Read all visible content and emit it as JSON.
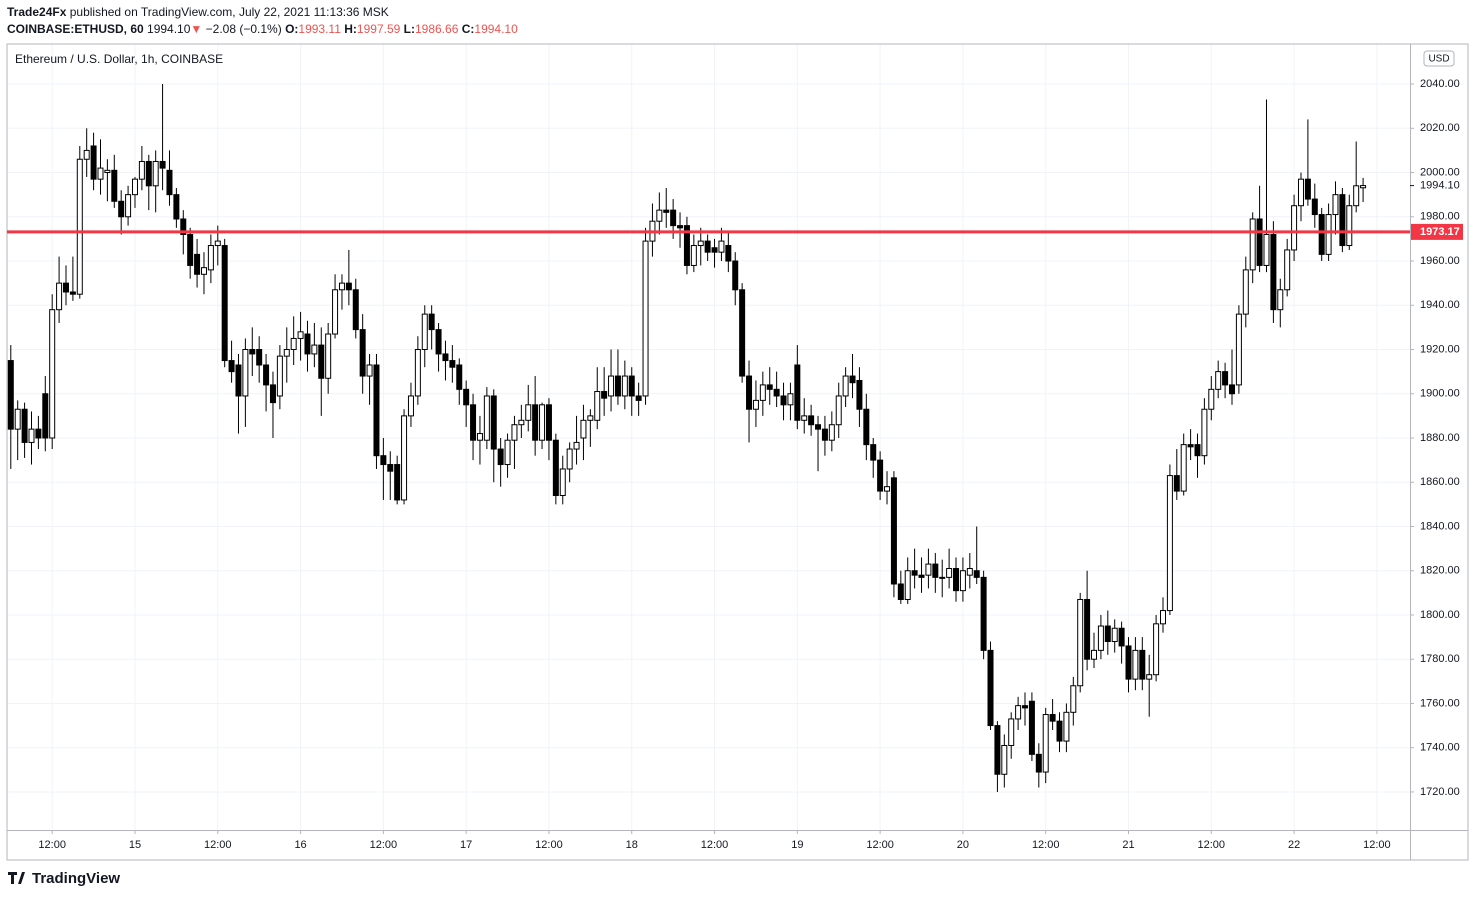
{
  "header": {
    "author": "Trade24Fx",
    "published": "published on TradingView.com, July 22, 2021 11:13:36 MSK",
    "symbol": "COINBASE:ETHUSD, 60",
    "last": "1994.10",
    "arrow": "▼",
    "change": "−2.08 (−0.1%)",
    "o_label": "O:",
    "o": "1993.11",
    "h_label": "H:",
    "h": "1997.59",
    "l_label": "L:",
    "l": "1986.66",
    "c_label": "C:",
    "c": "1994.10"
  },
  "footer": {
    "logo": "TradingView"
  },
  "chart_data": {
    "type": "candlestick",
    "title": "Ethereum / U.S. Dollar, 1h, COINBASE",
    "currency": "USD",
    "up_color": "#ffffff",
    "down_color": "#000000",
    "wick_color": "#000000",
    "grid": true,
    "hline": 1973.17,
    "hline_color": "#f23645",
    "ylim": [
      1702.8,
      2058.1
    ],
    "yticks": [
      {
        "value": 1720,
        "label": "1720.00"
      },
      {
        "value": 1740,
        "label": "1740.00"
      },
      {
        "value": 1760,
        "label": "1760.00"
      },
      {
        "value": 1780,
        "label": "1780.00"
      },
      {
        "value": 1800,
        "label": "1800.00"
      },
      {
        "value": 1820,
        "label": "1820.00"
      },
      {
        "value": 1840,
        "label": "1840.00"
      },
      {
        "value": 1860,
        "label": "1860.00"
      },
      {
        "value": 1880,
        "label": "1880.00"
      },
      {
        "value": 1900,
        "label": "1900.00"
      },
      {
        "value": 1920,
        "label": "1920.00"
      },
      {
        "value": 1940,
        "label": "1940.00"
      },
      {
        "value": 1960,
        "label": "1960.00"
      },
      {
        "value": 1980,
        "label": "1980.00"
      },
      {
        "value": 2000,
        "label": "2000.00"
      },
      {
        "value": 2020,
        "label": "2020.00"
      },
      {
        "value": 2040,
        "label": "2040.00"
      }
    ],
    "xlim": [
      5.45,
      208.8
    ],
    "xticks": [
      {
        "value": 12,
        "label": "12:00"
      },
      {
        "value": 24,
        "label": "15"
      },
      {
        "value": 36,
        "label": "12:00"
      },
      {
        "value": 48,
        "label": "16"
      },
      {
        "value": 60,
        "label": "12:00"
      },
      {
        "value": 72,
        "label": "17"
      },
      {
        "value": 84,
        "label": "12:00"
      },
      {
        "value": 96,
        "label": "18"
      },
      {
        "value": 108,
        "label": "12:00"
      },
      {
        "value": 120,
        "label": "19"
      },
      {
        "value": 132,
        "label": "12:00"
      },
      {
        "value": 144,
        "label": "20"
      },
      {
        "value": 156,
        "label": "12:00"
      },
      {
        "value": 168,
        "label": "21"
      },
      {
        "value": 180,
        "label": "12:00"
      },
      {
        "value": 192,
        "label": "22"
      },
      {
        "value": 204,
        "label": "12:00"
      }
    ],
    "x": [
      6,
      7,
      8,
      9,
      10,
      11,
      12,
      13,
      14,
      15,
      16,
      17,
      18,
      19,
      20,
      21,
      22,
      23,
      24,
      25,
      26,
      27,
      28,
      29,
      30,
      31,
      32,
      33,
      34,
      35,
      36,
      37,
      38,
      39,
      40,
      41,
      42,
      43,
      44,
      45,
      46,
      47,
      48,
      49,
      50,
      51,
      52,
      53,
      54,
      55,
      56,
      57,
      58,
      59,
      60,
      61,
      62,
      63,
      64,
      65,
      66,
      67,
      68,
      69,
      70,
      71,
      72,
      73,
      74,
      75,
      76,
      77,
      78,
      79,
      80,
      81,
      82,
      83,
      84,
      85,
      86,
      87,
      88,
      89,
      90,
      91,
      92,
      93,
      94,
      95,
      96,
      97,
      98,
      99,
      100,
      101,
      102,
      103,
      104,
      105,
      106,
      107,
      108,
      109,
      110,
      111,
      112,
      113,
      114,
      115,
      116,
      117,
      118,
      119,
      120,
      121,
      122,
      123,
      124,
      125,
      126,
      127,
      128,
      129,
      130,
      131,
      132,
      133,
      134,
      135,
      136,
      137,
      138,
      139,
      140,
      141,
      142,
      143,
      144,
      145,
      146,
      147,
      148,
      149,
      150,
      151,
      152,
      153,
      154,
      155,
      156,
      157,
      158,
      159,
      160,
      161,
      162,
      163,
      164,
      165,
      166,
      167,
      168,
      169,
      170,
      171,
      172,
      173,
      174,
      175,
      176,
      177,
      178,
      179,
      180,
      181,
      182,
      183,
      184,
      185,
      186,
      187,
      188,
      189,
      190,
      191,
      192,
      193,
      194,
      195,
      196,
      197,
      198,
      199,
      200,
      201,
      202
    ],
    "ohlc": [
      [
        1915,
        1922,
        1866,
        1884
      ],
      [
        1884,
        1897,
        1870,
        1893
      ],
      [
        1893,
        1896,
        1871,
        1878
      ],
      [
        1878,
        1892,
        1868,
        1884
      ],
      [
        1884,
        1890,
        1875,
        1880
      ],
      [
        1900,
        1908,
        1874,
        1880
      ],
      [
        1880,
        1945,
        1875,
        1938
      ],
      [
        1938,
        1962,
        1932,
        1950
      ],
      [
        1950,
        1958,
        1940,
        1946
      ],
      [
        1946,
        1962,
        1942,
        1945
      ],
      [
        1945,
        2012,
        1943,
        2006
      ],
      [
        2006,
        2020,
        1998,
        2010
      ],
      [
        2012,
        2018,
        1992,
        1997
      ],
      [
        1997,
        2015,
        1990,
        2002
      ],
      [
        2000,
        2006,
        1987,
        2001
      ],
      [
        2001,
        2008,
        1984,
        1987
      ],
      [
        1987,
        1992,
        1972,
        1980
      ],
      [
        1980,
        1994,
        1976,
        1990
      ],
      [
        1990,
        1998,
        1984,
        1997
      ],
      [
        1997,
        2012,
        1992,
        2005
      ],
      [
        2005,
        2008,
        1983,
        1994
      ],
      [
        1994,
        2010,
        1982,
        2005
      ],
      [
        2005,
        2040,
        1992,
        2002
      ],
      [
        2001,
        2010,
        1985,
        1990
      ],
      [
        1990,
        1993,
        1975,
        1979
      ],
      [
        1979,
        1983,
        1963,
        1972
      ],
      [
        1972,
        1975,
        1952,
        1958
      ],
      [
        1963,
        1970,
        1948,
        1954
      ],
      [
        1954,
        1964,
        1945,
        1957
      ],
      [
        1956,
        1972,
        1950,
        1967
      ],
      [
        1967,
        1976,
        1958,
        1969
      ],
      [
        1967,
        1970,
        1912,
        1915
      ],
      [
        1915,
        1924,
        1905,
        1910
      ],
      [
        1913,
        1918,
        1882,
        1899
      ],
      [
        1899,
        1925,
        1885,
        1920
      ],
      [
        1920,
        1930,
        1908,
        1918
      ],
      [
        1920,
        1926,
        1905,
        1913
      ],
      [
        1913,
        1918,
        1892,
        1904
      ],
      [
        1904,
        1910,
        1880,
        1896
      ],
      [
        1899,
        1922,
        1893,
        1917
      ],
      [
        1917,
        1930,
        1905,
        1920
      ],
      [
        1920,
        1935,
        1913,
        1925
      ],
      [
        1925,
        1937,
        1915,
        1928
      ],
      [
        1927,
        1933,
        1910,
        1918
      ],
      [
        1918,
        1932,
        1912,
        1922
      ],
      [
        1922,
        1930,
        1890,
        1907
      ],
      [
        1907,
        1932,
        1900,
        1927
      ],
      [
        1927,
        1954,
        1925,
        1947
      ],
      [
        1947,
        1954,
        1938,
        1950
      ],
      [
        1950,
        1965,
        1940,
        1947
      ],
      [
        1947,
        1952,
        1925,
        1929
      ],
      [
        1929,
        1936,
        1900,
        1908
      ],
      [
        1908,
        1918,
        1895,
        1913
      ],
      [
        1913,
        1918,
        1866,
        1872
      ],
      [
        1872,
        1880,
        1852,
        1868
      ],
      [
        1868,
        1874,
        1852,
        1865
      ],
      [
        1868,
        1872,
        1850,
        1852
      ],
      [
        1852,
        1893,
        1850,
        1890
      ],
      [
        1890,
        1905,
        1885,
        1899
      ],
      [
        1899,
        1926,
        1895,
        1920
      ],
      [
        1920,
        1940,
        1912,
        1936
      ],
      [
        1936,
        1940,
        1920,
        1929
      ],
      [
        1929,
        1932,
        1910,
        1918
      ],
      [
        1918,
        1924,
        1906,
        1915
      ],
      [
        1915,
        1922,
        1905,
        1912
      ],
      [
        1913,
        1916,
        1895,
        1902
      ],
      [
        1902,
        1906,
        1885,
        1895
      ],
      [
        1895,
        1900,
        1870,
        1879
      ],
      [
        1879,
        1890,
        1868,
        1882
      ],
      [
        1879,
        1903,
        1875,
        1899
      ],
      [
        1899,
        1902,
        1860,
        1875
      ],
      [
        1875,
        1880,
        1858,
        1868
      ],
      [
        1868,
        1882,
        1862,
        1879
      ],
      [
        1879,
        1890,
        1866,
        1886
      ],
      [
        1886,
        1895,
        1880,
        1888
      ],
      [
        1888,
        1904,
        1883,
        1895
      ],
      [
        1895,
        1908,
        1872,
        1879
      ],
      [
        1879,
        1896,
        1875,
        1895
      ],
      [
        1895,
        1898,
        1870,
        1879
      ],
      [
        1879,
        1882,
        1850,
        1854
      ],
      [
        1854,
        1872,
        1850,
        1866
      ],
      [
        1866,
        1878,
        1860,
        1875
      ],
      [
        1875,
        1890,
        1868,
        1878
      ],
      [
        1880,
        1895,
        1870,
        1888
      ],
      [
        1888,
        1893,
        1876,
        1890
      ],
      [
        1888,
        1912,
        1884,
        1901
      ],
      [
        1901,
        1912,
        1890,
        1898
      ],
      [
        1899,
        1920,
        1892,
        1908
      ],
      [
        1908,
        1920,
        1895,
        1899
      ],
      [
        1899,
        1915,
        1893,
        1908
      ],
      [
        1908,
        1912,
        1890,
        1899
      ],
      [
        1899,
        1905,
        1890,
        1897
      ],
      [
        1899,
        1975,
        1895,
        1969
      ],
      [
        1969,
        1986,
        1962,
        1978
      ],
      [
        1978,
        1991,
        1972,
        1983
      ],
      [
        1983,
        1993,
        1975,
        1982
      ],
      [
        1983,
        1988,
        1970,
        1976
      ],
      [
        1976,
        1982,
        1966,
        1975
      ],
      [
        1976,
        1980,
        1954,
        1958
      ],
      [
        1958,
        1972,
        1955,
        1967
      ],
      [
        1967,
        1975,
        1958,
        1969
      ],
      [
        1969,
        1972,
        1960,
        1964
      ],
      [
        1966,
        1970,
        1957,
        1964
      ],
      [
        1964,
        1975,
        1960,
        1969
      ],
      [
        1967,
        1973,
        1955,
        1960
      ],
      [
        1960,
        1964,
        1940,
        1947
      ],
      [
        1947,
        1950,
        1905,
        1908
      ],
      [
        1908,
        1915,
        1878,
        1893
      ],
      [
        1893,
        1906,
        1885,
        1897
      ],
      [
        1897,
        1910,
        1890,
        1904
      ],
      [
        1904,
        1912,
        1895,
        1902
      ],
      [
        1902,
        1910,
        1894,
        1899
      ],
      [
        1899,
        1905,
        1888,
        1895
      ],
      [
        1895,
        1905,
        1888,
        1900
      ],
      [
        1913,
        1922,
        1884,
        1888
      ],
      [
        1888,
        1898,
        1882,
        1890
      ],
      [
        1890,
        1895,
        1881,
        1886
      ],
      [
        1886,
        1890,
        1865,
        1884
      ],
      [
        1884,
        1890,
        1872,
        1879
      ],
      [
        1879,
        1892,
        1874,
        1886
      ],
      [
        1886,
        1905,
        1880,
        1899
      ],
      [
        1899,
        1912,
        1894,
        1908
      ],
      [
        1908,
        1918,
        1898,
        1905
      ],
      [
        1906,
        1912,
        1885,
        1893
      ],
      [
        1893,
        1900,
        1870,
        1877
      ],
      [
        1877,
        1880,
        1862,
        1870
      ],
      [
        1870,
        1874,
        1852,
        1856
      ],
      [
        1856,
        1865,
        1850,
        1858
      ],
      [
        1862,
        1865,
        1808,
        1814
      ],
      [
        1814,
        1820,
        1805,
        1807
      ],
      [
        1807,
        1826,
        1805,
        1820
      ],
      [
        1820,
        1830,
        1812,
        1818
      ],
      [
        1818,
        1826,
        1810,
        1817
      ],
      [
        1818,
        1830,
        1812,
        1823
      ],
      [
        1823,
        1828,
        1810,
        1817
      ],
      [
        1817,
        1825,
        1808,
        1817
      ],
      [
        1817,
        1830,
        1812,
        1821
      ],
      [
        1821,
        1826,
        1806,
        1811
      ],
      [
        1811,
        1826,
        1806,
        1820
      ],
      [
        1818,
        1828,
        1812,
        1821
      ],
      [
        1820,
        1840,
        1814,
        1817
      ],
      [
        1817,
        1820,
        1780,
        1784
      ],
      [
        1784,
        1788,
        1748,
        1750
      ],
      [
        1750,
        1752,
        1720,
        1728
      ],
      [
        1728,
        1746,
        1722,
        1741
      ],
      [
        1741,
        1756,
        1735,
        1753
      ],
      [
        1753,
        1763,
        1748,
        1759
      ],
      [
        1759,
        1765,
        1750,
        1758
      ],
      [
        1761,
        1765,
        1734,
        1737
      ],
      [
        1737,
        1742,
        1722,
        1729
      ],
      [
        1729,
        1758,
        1724,
        1755
      ],
      [
        1755,
        1762,
        1748,
        1752
      ],
      [
        1752,
        1756,
        1738,
        1743
      ],
      [
        1743,
        1760,
        1738,
        1756
      ],
      [
        1756,
        1772,
        1750,
        1768
      ],
      [
        1768,
        1810,
        1765,
        1807
      ],
      [
        1807,
        1820,
        1775,
        1780
      ],
      [
        1780,
        1792,
        1776,
        1784
      ],
      [
        1784,
        1800,
        1780,
        1795
      ],
      [
        1795,
        1802,
        1782,
        1788
      ],
      [
        1788,
        1798,
        1783,
        1794
      ],
      [
        1794,
        1797,
        1778,
        1786
      ],
      [
        1786,
        1790,
        1765,
        1771
      ],
      [
        1771,
        1790,
        1766,
        1784
      ],
      [
        1784,
        1790,
        1766,
        1771
      ],
      [
        1771,
        1782,
        1754,
        1773
      ],
      [
        1773,
        1800,
        1770,
        1796
      ],
      [
        1796,
        1808,
        1792,
        1802
      ],
      [
        1802,
        1868,
        1800,
        1863
      ],
      [
        1863,
        1875,
        1852,
        1856
      ],
      [
        1856,
        1882,
        1854,
        1877
      ],
      [
        1877,
        1884,
        1870,
        1876
      ],
      [
        1877,
        1882,
        1862,
        1872
      ],
      [
        1872,
        1898,
        1868,
        1893
      ],
      [
        1893,
        1908,
        1888,
        1902
      ],
      [
        1902,
        1915,
        1898,
        1910
      ],
      [
        1910,
        1914,
        1898,
        1904
      ],
      [
        1904,
        1920,
        1895,
        1900
      ],
      [
        1904,
        1940,
        1900,
        1936
      ],
      [
        1936,
        1962,
        1930,
        1956
      ],
      [
        1956,
        1982,
        1950,
        1979
      ],
      [
        1979,
        1994,
        1955,
        1958
      ],
      [
        1958,
        2033,
        1955,
        1972
      ],
      [
        1972,
        1978,
        1932,
        1938
      ],
      [
        1938,
        1952,
        1930,
        1947
      ],
      [
        1947,
        1970,
        1944,
        1965
      ],
      [
        1965,
        1990,
        1960,
        1985
      ],
      [
        1985,
        2000,
        1978,
        1997
      ],
      [
        1997,
        2024,
        1985,
        1988
      ],
      [
        1988,
        1995,
        1975,
        1981
      ],
      [
        1981,
        1984,
        1960,
        1963
      ],
      [
        1963,
        1986,
        1960,
        1981
      ],
      [
        1981,
        1996,
        1972,
        1990
      ],
      [
        1990,
        1993,
        1964,
        1967
      ],
      [
        1967,
        1990,
        1965,
        1985
      ],
      [
        1985,
        2014,
        1982,
        1994
      ],
      [
        1993.11,
        1997.59,
        1986.66,
        1994.1
      ]
    ]
  }
}
